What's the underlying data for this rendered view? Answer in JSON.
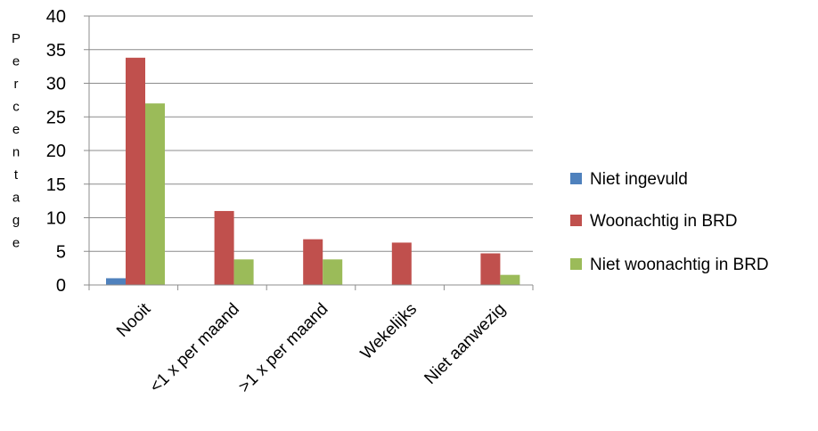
{
  "chart_data": {
    "type": "bar",
    "categories": [
      "Nooit",
      "<1 x per maand",
      ">1 x per maand",
      "Wekelijks",
      "Niet aanwezig"
    ],
    "series": [
      {
        "name": "Niet ingevuld",
        "color": "#4F81BD",
        "values": [
          1.0,
          0,
          0,
          0,
          0
        ]
      },
      {
        "name": "Woonachtig in BRD",
        "color": "#C0504D",
        "values": [
          33.8,
          11.0,
          6.8,
          6.3,
          4.7
        ]
      },
      {
        "name": "Niet woonachtig in BRD",
        "color": "#9BBB59",
        "values": [
          27.0,
          3.8,
          3.8,
          0,
          1.5
        ]
      }
    ],
    "ylabel": "Percentage",
    "ylim": [
      0,
      40
    ],
    "yticks": [
      "0",
      "5",
      "10",
      "15",
      "20",
      "25",
      "30",
      "35",
      "40"
    ],
    "grid": true,
    "legend_position": "right"
  }
}
